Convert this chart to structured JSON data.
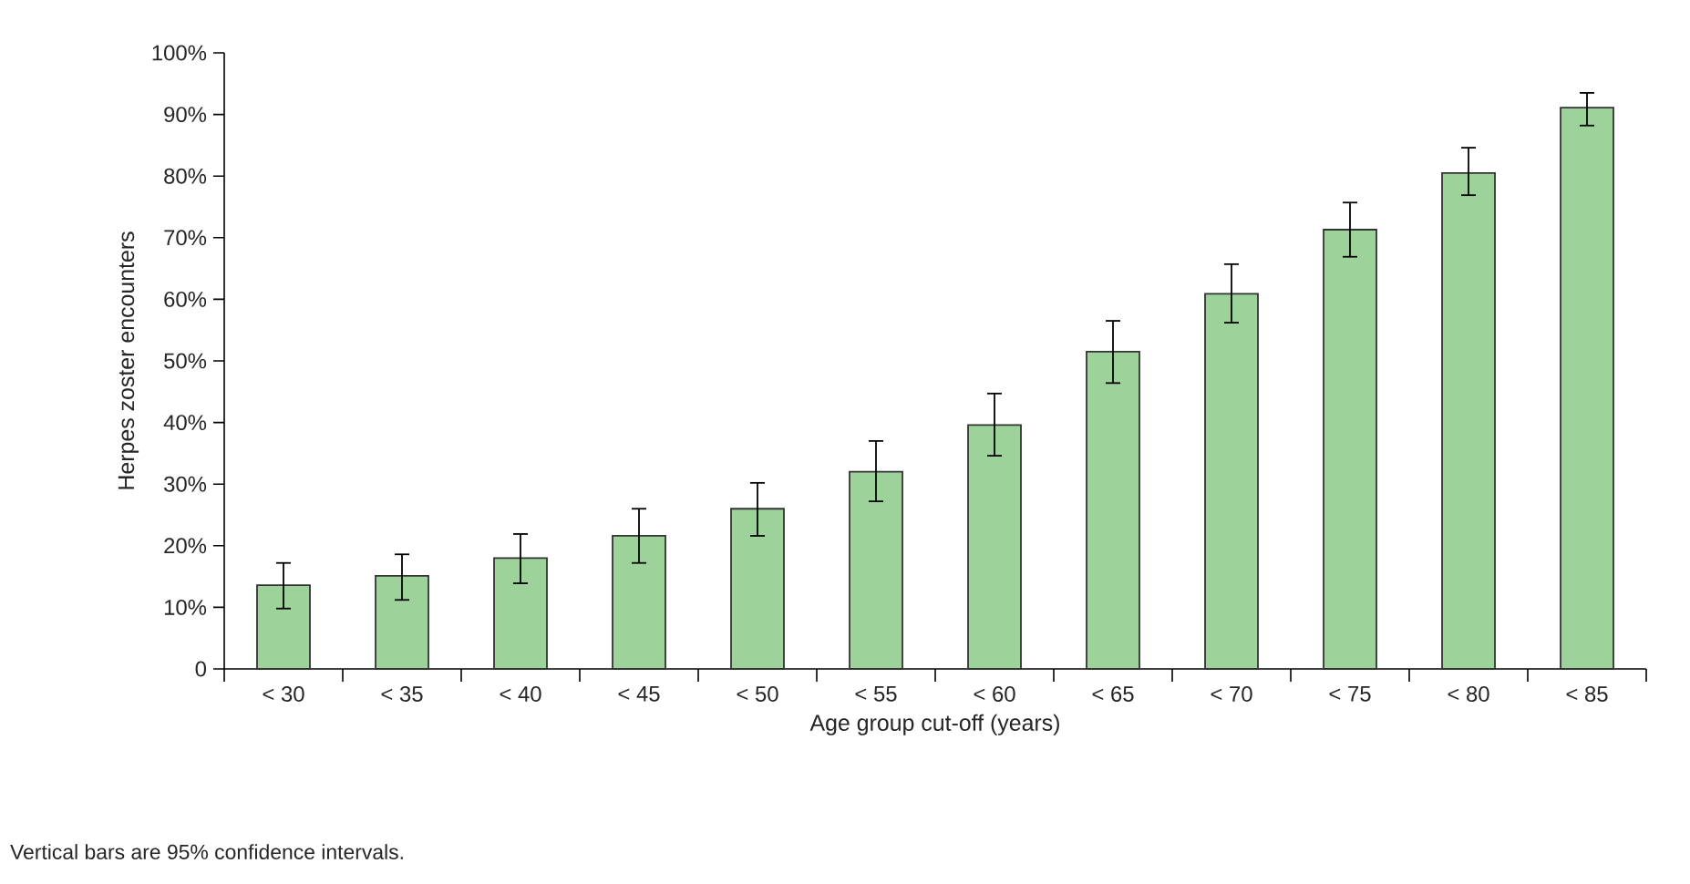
{
  "chart_data": {
    "type": "bar",
    "xlabel": "Age group cut-off (years)",
    "ylabel": "Herpes zoster encounters",
    "categories": [
      "< 30",
      "< 35",
      "< 40",
      "< 45",
      "< 50",
      "< 55",
      "< 60",
      "< 65",
      "< 70",
      "< 75",
      "< 80",
      "< 85"
    ],
    "values": [
      13.6,
      15.1,
      18.0,
      21.6,
      26.0,
      32.0,
      39.6,
      51.5,
      60.9,
      71.3,
      80.5,
      91.1
    ],
    "errors": [
      [
        9.8,
        17.2
      ],
      [
        11.2,
        18.6
      ],
      [
        13.9,
        21.9
      ],
      [
        17.2,
        26.0
      ],
      [
        21.6,
        30.2
      ],
      [
        27.2,
        37.0
      ],
      [
        34.6,
        44.7
      ],
      [
        46.4,
        56.5
      ],
      [
        56.2,
        65.7
      ],
      [
        66.9,
        75.7
      ],
      [
        76.9,
        84.6
      ],
      [
        88.2,
        93.5
      ]
    ],
    "color": "#9dd39b",
    "ylim": [
      0,
      100
    ],
    "yticks": [
      0,
      {
        "value": 10,
        "label": "10%"
      },
      {
        "value": 20,
        "label": "20%"
      },
      {
        "value": 30,
        "label": "30%"
      },
      {
        "value": 40,
        "label": "40%"
      },
      {
        "value": 50,
        "label": "50%"
      },
      {
        "value": 60,
        "label": "60%"
      },
      {
        "value": 70,
        "label": "70%"
      },
      {
        "value": 80,
        "label": "80%"
      },
      {
        "value": 90,
        "label": "90%"
      },
      {
        "value": 100,
        "label": "100%"
      }
    ],
    "annotations": [
      "Vertical bars are 95% confidence intervals."
    ]
  }
}
